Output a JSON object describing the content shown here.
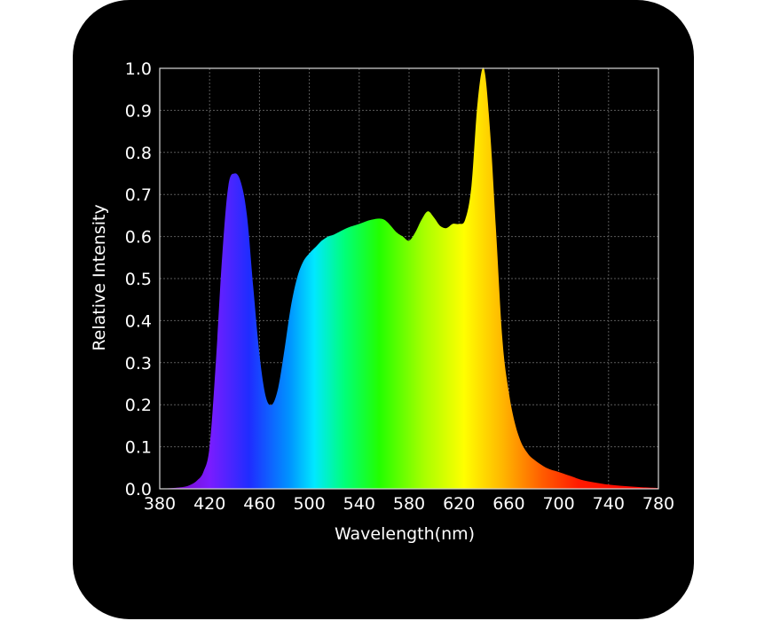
{
  "chart_data": {
    "type": "area",
    "title": "",
    "xlabel": "Wavelength(nm)",
    "ylabel": "Relative Intensity",
    "xlim": [
      380,
      780
    ],
    "ylim": [
      0,
      1.0
    ],
    "grid": true,
    "background_color": "#000000",
    "grid_color": "#5a5a5a",
    "fill": "visible-spectrum gradient (violet to red)",
    "x_ticks": [
      380,
      420,
      460,
      500,
      540,
      580,
      620,
      660,
      700,
      740,
      780
    ],
    "y_ticks": [
      0.0,
      0.1,
      0.2,
      0.3,
      0.4,
      0.5,
      0.6,
      0.7,
      0.8,
      0.9,
      1.0
    ],
    "x_tick_labels": [
      "380",
      "420",
      "460",
      "500",
      "540",
      "580",
      "620",
      "660",
      "700",
      "740",
      "780"
    ],
    "y_tick_labels": [
      "0.0",
      "0.1",
      "0.2",
      "0.3",
      "0.4",
      "0.5",
      "0.6",
      "0.7",
      "0.8",
      "0.9",
      "1.0"
    ],
    "series": [
      {
        "x": [
          380,
          390,
          400,
          405,
          410,
          415,
          420,
          425,
          430,
          435,
          440,
          445,
          450,
          455,
          460,
          465,
          470,
          475,
          480,
          485,
          490,
          495,
          500,
          505,
          510,
          515,
          520,
          530,
          540,
          550,
          560,
          570,
          575,
          580,
          585,
          590,
          595,
          600,
          605,
          610,
          615,
          620,
          625,
          630,
          635,
          640,
          645,
          650,
          655,
          660,
          665,
          670,
          675,
          680,
          690,
          700,
          710,
          720,
          740,
          760,
          780
        ],
        "values": [
          0.0,
          0.002,
          0.005,
          0.01,
          0.02,
          0.04,
          0.1,
          0.3,
          0.55,
          0.72,
          0.75,
          0.73,
          0.65,
          0.48,
          0.32,
          0.22,
          0.2,
          0.24,
          0.33,
          0.43,
          0.5,
          0.54,
          0.56,
          0.575,
          0.59,
          0.6,
          0.605,
          0.62,
          0.63,
          0.64,
          0.64,
          0.61,
          0.6,
          0.59,
          0.61,
          0.64,
          0.66,
          0.645,
          0.625,
          0.62,
          0.63,
          0.63,
          0.64,
          0.72,
          0.92,
          1.0,
          0.85,
          0.6,
          0.35,
          0.23,
          0.155,
          0.11,
          0.085,
          0.07,
          0.05,
          0.04,
          0.03,
          0.02,
          0.01,
          0.005,
          0.002
        ]
      }
    ]
  }
}
